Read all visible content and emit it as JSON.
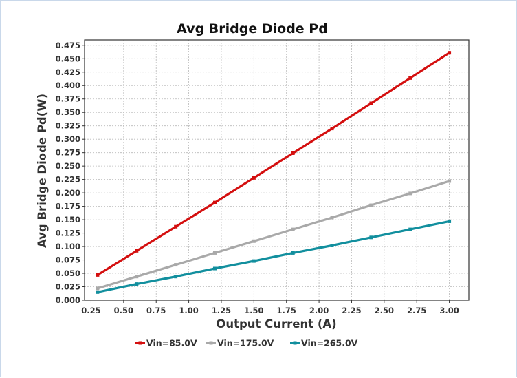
{
  "chart_data": {
    "type": "line",
    "title": "Avg Bridge Diode Pd",
    "xlabel": "Output Current (A)",
    "ylabel": "Avg Bridge Diode Pd(W)",
    "x": [
      0.3,
      0.6,
      0.9,
      1.2,
      1.5,
      1.8,
      2.1,
      2.4,
      2.7,
      3.0
    ],
    "xlim": [
      0.2,
      3.15
    ],
    "ylim": [
      0.0,
      0.485
    ],
    "x_ticks": [
      "0.25",
      "0.50",
      "0.75",
      "1.00",
      "1.25",
      "1.50",
      "1.75",
      "2.00",
      "2.25",
      "2.50",
      "2.75",
      "3.00"
    ],
    "y_ticks": [
      "0.000",
      "0.025",
      "0.050",
      "0.075",
      "0.100",
      "0.125",
      "0.150",
      "0.175",
      "0.200",
      "0.225",
      "0.250",
      "0.275",
      "0.300",
      "0.325",
      "0.350",
      "0.375",
      "0.400",
      "0.425",
      "0.450",
      "0.475"
    ],
    "grid": true,
    "legend_position": "bottom",
    "series": [
      {
        "name": "Vin=85.0V",
        "color": "#d40f0f",
        "values": [
          0.047,
          0.092,
          0.137,
          0.182,
          0.228,
          0.274,
          0.32,
          0.367,
          0.414,
          0.461
        ]
      },
      {
        "name": "Vin=175.0V",
        "color": "#a9a9a9",
        "values": [
          0.022,
          0.044,
          0.066,
          0.088,
          0.11,
          0.132,
          0.154,
          0.177,
          0.199,
          0.222
        ]
      },
      {
        "name": "Vin=265.0V",
        "color": "#128f9e",
        "values": [
          0.015,
          0.03,
          0.044,
          0.059,
          0.073,
          0.088,
          0.102,
          0.117,
          0.132,
          0.147
        ]
      }
    ]
  }
}
